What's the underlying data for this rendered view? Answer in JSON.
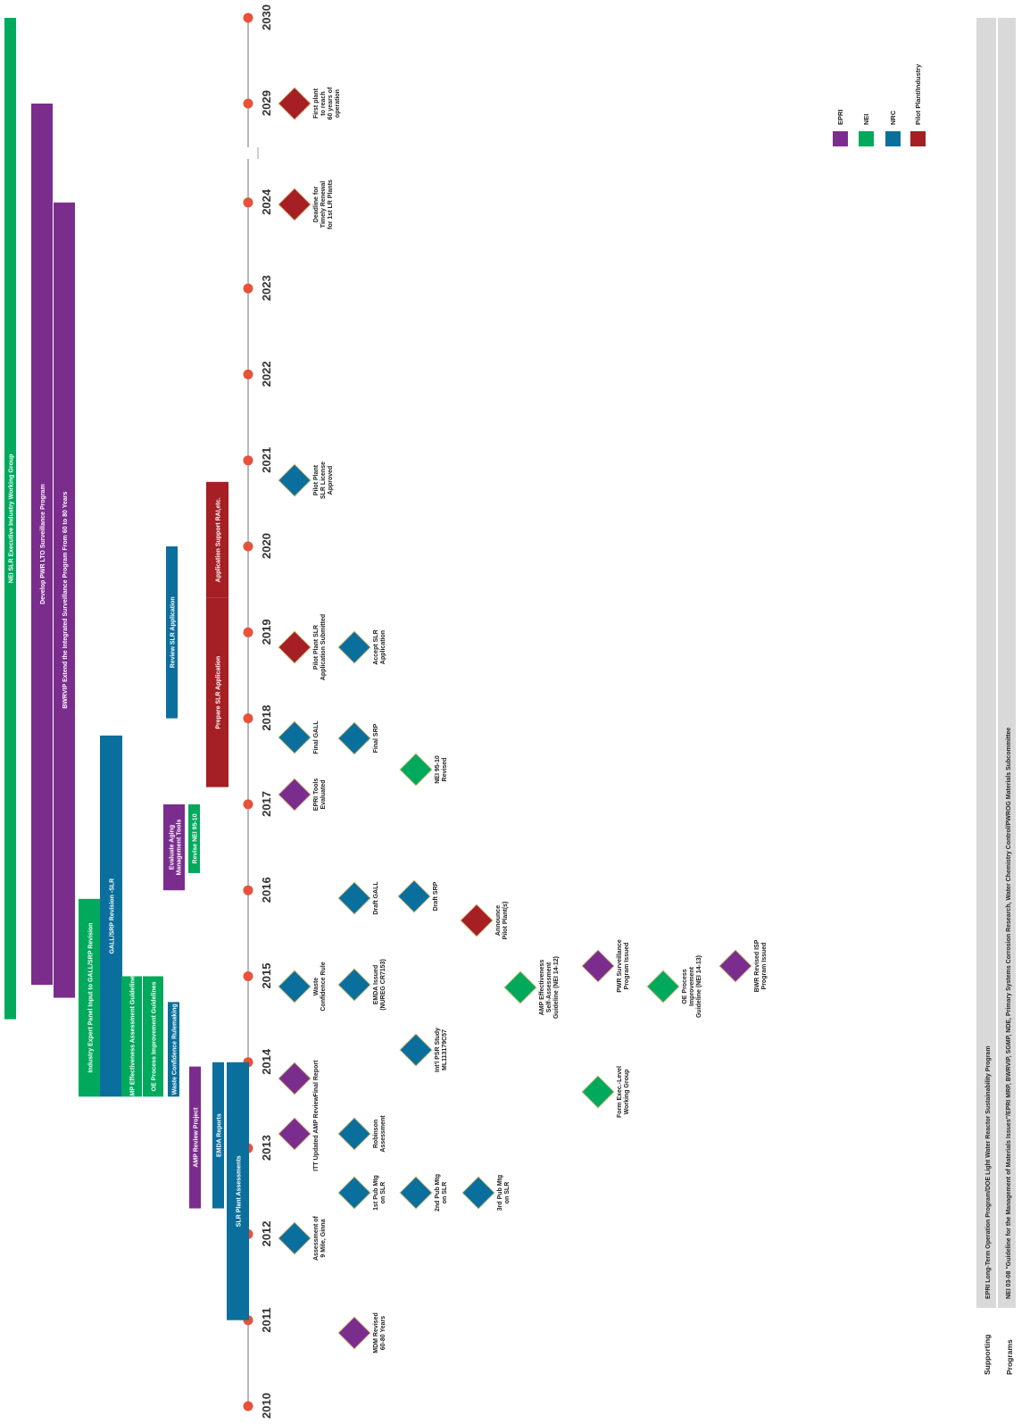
{
  "chart_data": {
    "type": "timeline",
    "title": "",
    "year_range": [
      2010,
      2030
    ],
    "axis_ticks": [
      "2010",
      "2011",
      "2012",
      "2013",
      "2014",
      "2015",
      "2016",
      "2017",
      "2018",
      "2019",
      "2020",
      "2021",
      "2022",
      "2023",
      "2024",
      "2029",
      "2030"
    ],
    "colors": {
      "EPRI": "#7B2D8E",
      "NEI": "#00A95C",
      "NRC": "#0A6F9C",
      "Pilot Plant/Industry": "#A51F24",
      "axis_dot": "#E8513A",
      "axis_line": "#9a9a9a",
      "band": "#d9d9d9"
    },
    "legend": [
      {
        "label": "EPRI",
        "org": "EPRI"
      },
      {
        "label": "NEI",
        "org": "NEI"
      },
      {
        "label": "NRC",
        "org": "NRC"
      },
      {
        "label": "Pilot Plant/Industry",
        "org": "Pilot Plant/Industry"
      }
    ],
    "bars": [
      {
        "label": "NEI SLR Executive Industry Working Group",
        "org": "NEI",
        "start": 2014.5,
        "end": 2030
      },
      {
        "label": "Develop PWR LTO Surveillance Program",
        "org": "EPRI",
        "start": 2014.9,
        "end": 2029
      },
      {
        "label": "BWRVIP Extend the Integrated Surveillance Program From 60 to 80 Years",
        "org": "EPRI",
        "start": 2014.75,
        "end": 2024
      },
      {
        "label": "Industry Expert Panel Input to GALL/SRP Revision",
        "org": "NEI",
        "start": 2013.6,
        "end": 2015.9
      },
      {
        "label": "GALL/SRP Revision -SLR",
        "org": "NRC",
        "start": 2013.6,
        "end": 2017.8
      },
      {
        "label": "AMP Effectiveness Assessment Guidelines",
        "org": "NEI",
        "start": 2013.6,
        "end": 2015
      },
      {
        "label": "OE Process Improvement Guidelines",
        "org": "NEI",
        "start": 2013.6,
        "end": 2015
      },
      {
        "label": "Waste Confidence Rulemaking",
        "org": "NRC",
        "start": 2013.6,
        "end": 2014.7
      },
      {
        "label": "Evaluate Aging\nManagement Tools",
        "org": "EPRI",
        "start": 2016,
        "end": 2017
      },
      {
        "label": "Revise NEI 95-10",
        "org": "NEI",
        "start": 2016.2,
        "end": 2017
      },
      {
        "label": "Prepare SLR Application",
        "org": "Pilot Plant/Industry",
        "start": 2017.2,
        "end": 2019.4
      },
      {
        "label": "Application Support RAI,etc.",
        "org": "Pilot Plant/Industry",
        "start": 2019.4,
        "end": 2020.75
      },
      {
        "label": "Review SLR Application",
        "org": "NRC",
        "start": 2018,
        "end": 2020
      },
      {
        "label": "AMP Review Project",
        "org": "EPRI",
        "start": 2012.3,
        "end": 2013.95
      },
      {
        "label": "EMDA Reports",
        "org": "NRC",
        "start": 2012.3,
        "end": 2014
      },
      {
        "label": "SLR Plant Assessments",
        "org": "NRC",
        "start": 2011,
        "end": 2014
      }
    ],
    "milestones": [
      {
        "label": "MDM Revised\n60-80 Years",
        "org": "EPRI",
        "year": 2010.6
      },
      {
        "label": "Assessment of\n9 Mile, Ginna",
        "org": "NRC",
        "year": 2011.75
      },
      {
        "label": "1st Pub Mtg\non SLR",
        "org": "NRC",
        "year": 2012.25
      },
      {
        "label": "2nd Pub Mtg\non SLR",
        "org": "NRC",
        "year": 2012.25
      },
      {
        "label": "3rd Pub Mtg\non SLR",
        "org": "NRC",
        "year": 2012.25
      },
      {
        "label": "ITT Updated AMP Review",
        "org": "EPRI",
        "year": 2013.1
      },
      {
        "label": "Robinson\nAssessment",
        "org": "NRC",
        "year": 2013.1
      },
      {
        "label": "Final Report",
        "org": "EPRI",
        "year": 2013.7
      },
      {
        "label": "Form Exec.-Level\nWorking Group",
        "org": "NEI",
        "year": 2013.6
      },
      {
        "label": "Int'l PSR Study\nML113179C57",
        "org": "NRC",
        "year": 2014.25
      },
      {
        "label": "Waste\nConfidence Rule",
        "org": "NRC",
        "year": 2014.7
      },
      {
        "label": "EMDA Issued\n(NUREG CR7153)",
        "org": "NRC",
        "year": 2014.75
      },
      {
        "label": "AMP Effectiveness\nSelf-Assessment\nGuideline (NEI 14-12)",
        "org": "NEI",
        "year": 2014.7
      },
      {
        "label": "PWR Surveillance\nProgram Issued",
        "org": "EPRI",
        "year": 2014.95
      },
      {
        "label": "OE Process\nImprovement\nGuideline (NEI 14-13)",
        "org": "NEI",
        "year": 2014.7
      },
      {
        "label": "BWR Revised ISP\nProgram Issued",
        "org": "EPRI",
        "year": 2014.95
      },
      {
        "label": "Draft GALL",
        "org": "NRC",
        "year": 2016.2
      },
      {
        "label": "Draft SRP",
        "org": "NRC",
        "year": 2016.2
      },
      {
        "label": "Announce\nPilot Plant(s)",
        "org": "Pilot Plant/Industry",
        "year": 2015.8
      },
      {
        "label": "EPRI Tools\nEvaluated",
        "org": "EPRI",
        "year": 2017
      },
      {
        "label": "NEI 95-10\nRevised",
        "org": "NEI",
        "year": 2017.3
      },
      {
        "label": "Final GALL",
        "org": "NRC",
        "year": 2018.3
      },
      {
        "label": "Final SRP",
        "org": "NRC",
        "year": 2018.3
      },
      {
        "label": "Pilot Plant SLR\nApplication Submitted",
        "org": "Pilot Plant/Industry",
        "year": 2019.25
      },
      {
        "label": "Accept SLR\nApplication",
        "org": "NRC",
        "year": 2019.25
      },
      {
        "label": "Pilot Plant\nSLR License\nApproved",
        "org": "NRC",
        "year": 2021.25
      },
      {
        "label": "Deadline for\nTimely Renewal\nfor 1st LR Plants",
        "org": "Pilot Plant/Industry",
        "year": 2024
      },
      {
        "label": "First plant\nto reach\n60 years of\noperation",
        "org": "Pilot Plant/Industry",
        "year": 2029
      }
    ],
    "bottom_bands": [
      {
        "title": "Supporting",
        "text": "EPRI Long-Term Operation Program/DOE Light Water Reactor Sustainability Program"
      },
      {
        "title": "Programs",
        "text": "NEI 03-08 \"Guideline for the Management of Materials Issues\"/EPRI MRP, BWRVIP, SGMP, NDE, Primary Systems Corrosion Research, Water Chemistry Control/PWROG Materials Subcommittee"
      }
    ]
  }
}
